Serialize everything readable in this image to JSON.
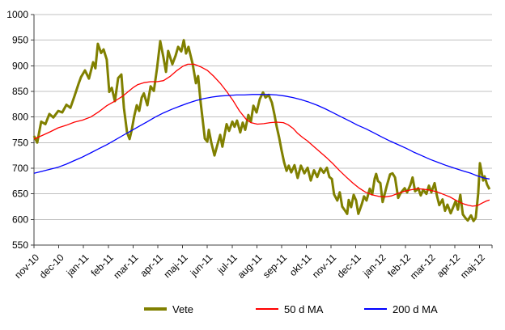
{
  "chart_data": {
    "type": "line",
    "title": "",
    "xlabel": "",
    "ylabel": "",
    "grid": true,
    "x_axis": {
      "unit": "months (fractional index from nov-10 tick)",
      "extent": 18.5,
      "labels": [
        "nov-10",
        "dec-10",
        "jan-11",
        "feb-11",
        "mar-11",
        "apr-11",
        "maj-11",
        "jun-11",
        "jul-11",
        "aug-11",
        "sep-11",
        "okt-11",
        "nov-11",
        "dec-11",
        "jan-12",
        "feb-12",
        "mar-12",
        "apr-12",
        "maj-12"
      ],
      "label_rotation_deg": -45
    },
    "y_axis": {
      "min": 550,
      "max": 1000,
      "step": 50,
      "ticks": [
        550,
        600,
        650,
        700,
        750,
        800,
        850,
        900,
        950,
        1000
      ]
    },
    "legend": {
      "position": "bottom"
    },
    "series": [
      {
        "name": "Vete",
        "color": "#808000",
        "stroke_width": 3,
        "points": [
          [
            0,
            763
          ],
          [
            0.13,
            750
          ],
          [
            0.29,
            791
          ],
          [
            0.46,
            786
          ],
          [
            0.62,
            806
          ],
          [
            0.78,
            799
          ],
          [
            0.98,
            812
          ],
          [
            1.14,
            809
          ],
          [
            1.31,
            824
          ],
          [
            1.47,
            818
          ],
          [
            1.63,
            840
          ],
          [
            1.8,
            865
          ],
          [
            1.9,
            878
          ],
          [
            2.06,
            891
          ],
          [
            2.22,
            875
          ],
          [
            2.39,
            907
          ],
          [
            2.48,
            895
          ],
          [
            2.58,
            943
          ],
          [
            2.71,
            925
          ],
          [
            2.81,
            932
          ],
          [
            2.94,
            912
          ],
          [
            3.04,
            849
          ],
          [
            3.14,
            857
          ],
          [
            3.27,
            831
          ],
          [
            3.4,
            876
          ],
          [
            3.53,
            883
          ],
          [
            3.63,
            818
          ],
          [
            3.76,
            770
          ],
          [
            3.86,
            757
          ],
          [
            3.95,
            775
          ],
          [
            4.05,
            802
          ],
          [
            4.15,
            823
          ],
          [
            4.25,
            812
          ],
          [
            4.35,
            838
          ],
          [
            4.44,
            846
          ],
          [
            4.58,
            823
          ],
          [
            4.71,
            860
          ],
          [
            4.84,
            851
          ],
          [
            4.97,
            896
          ],
          [
            5.1,
            948
          ],
          [
            5.23,
            916
          ],
          [
            5.33,
            888
          ],
          [
            5.42,
            929
          ],
          [
            5.59,
            903
          ],
          [
            5.72,
            920
          ],
          [
            5.82,
            937
          ],
          [
            5.95,
            928
          ],
          [
            6.05,
            950
          ],
          [
            6.14,
            924
          ],
          [
            6.24,
            937
          ],
          [
            6.41,
            903
          ],
          [
            6.54,
            866
          ],
          [
            6.63,
            880
          ],
          [
            6.73,
            829
          ],
          [
            6.83,
            787
          ],
          [
            6.9,
            758
          ],
          [
            7,
            752
          ],
          [
            7.06,
            775
          ],
          [
            7.16,
            750
          ],
          [
            7.29,
            725
          ],
          [
            7.42,
            748
          ],
          [
            7.52,
            765
          ],
          [
            7.61,
            742
          ],
          [
            7.78,
            786
          ],
          [
            7.88,
            773
          ],
          [
            8.01,
            791
          ],
          [
            8.1,
            781
          ],
          [
            8.2,
            793
          ],
          [
            8.33,
            770
          ],
          [
            8.43,
            789
          ],
          [
            8.53,
            775
          ],
          [
            8.66,
            804
          ],
          [
            8.76,
            791
          ],
          [
            8.86,
            822
          ],
          [
            8.99,
            809
          ],
          [
            9.12,
            835
          ],
          [
            9.25,
            848
          ],
          [
            9.35,
            838
          ],
          [
            9.48,
            843
          ],
          [
            9.61,
            828
          ],
          [
            9.71,
            805
          ],
          [
            9.8,
            782
          ],
          [
            9.9,
            760
          ],
          [
            10,
            735
          ],
          [
            10.1,
            712
          ],
          [
            10.2,
            695
          ],
          [
            10.29,
            705
          ],
          [
            10.39,
            692
          ],
          [
            10.52,
            706
          ],
          [
            10.65,
            681
          ],
          [
            10.78,
            705
          ],
          [
            10.92,
            690
          ],
          [
            11.05,
            701
          ],
          [
            11.18,
            676
          ],
          [
            11.31,
            696
          ],
          [
            11.44,
            683
          ],
          [
            11.57,
            700
          ],
          [
            11.7,
            691
          ],
          [
            11.83,
            701
          ],
          [
            11.93,
            683
          ],
          [
            12.03,
            679
          ],
          [
            12.12,
            649
          ],
          [
            12.25,
            637
          ],
          [
            12.35,
            653
          ],
          [
            12.45,
            625
          ],
          [
            12.58,
            616
          ],
          [
            12.65,
            611
          ],
          [
            12.71,
            638
          ],
          [
            12.81,
            624
          ],
          [
            12.91,
            648
          ],
          [
            13.01,
            637
          ],
          [
            13.1,
            611
          ],
          [
            13.24,
            630
          ],
          [
            13.33,
            645
          ],
          [
            13.43,
            637
          ],
          [
            13.56,
            660
          ],
          [
            13.66,
            649
          ],
          [
            13.76,
            680
          ],
          [
            13.82,
            689
          ],
          [
            13.89,
            675
          ],
          [
            13.99,
            671
          ],
          [
            14.08,
            634
          ],
          [
            14.25,
            666
          ],
          [
            14.38,
            688
          ],
          [
            14.48,
            690
          ],
          [
            14.58,
            682
          ],
          [
            14.71,
            642
          ],
          [
            14.8,
            651
          ],
          [
            14.97,
            661
          ],
          [
            15.07,
            653
          ],
          [
            15.2,
            667
          ],
          [
            15.29,
            682
          ],
          [
            15.39,
            655
          ],
          [
            15.52,
            661
          ],
          [
            15.62,
            647
          ],
          [
            15.72,
            658
          ],
          [
            15.85,
            650
          ],
          [
            15.95,
            666
          ],
          [
            16.05,
            653
          ],
          [
            16.18,
            671
          ],
          [
            16.27,
            647
          ],
          [
            16.37,
            628
          ],
          [
            16.5,
            639
          ],
          [
            16.6,
            617
          ],
          [
            16.7,
            629
          ],
          [
            16.83,
            612
          ],
          [
            16.93,
            624
          ],
          [
            17.03,
            636
          ],
          [
            17.12,
            619
          ],
          [
            17.22,
            648
          ],
          [
            17.32,
            610
          ],
          [
            17.42,
            603
          ],
          [
            17.52,
            598
          ],
          [
            17.65,
            608
          ],
          [
            17.75,
            597
          ],
          [
            17.84,
            603
          ],
          [
            17.94,
            651
          ],
          [
            18.01,
            710
          ],
          [
            18.07,
            695
          ],
          [
            18.14,
            676
          ],
          [
            18.2,
            684
          ],
          [
            18.3,
            668
          ],
          [
            18.4,
            659
          ]
        ]
      },
      {
        "name": "50 d MA",
        "color": "#ff0000",
        "stroke_width": 1.3,
        "points": [
          [
            0,
            757
          ],
          [
            0.33,
            764
          ],
          [
            0.65,
            771
          ],
          [
            0.98,
            779
          ],
          [
            1.31,
            784
          ],
          [
            1.63,
            790
          ],
          [
            1.96,
            794
          ],
          [
            2.29,
            800
          ],
          [
            2.61,
            810
          ],
          [
            2.94,
            822
          ],
          [
            3.27,
            831
          ],
          [
            3.59,
            841
          ],
          [
            3.79,
            849
          ],
          [
            3.99,
            857
          ],
          [
            4.18,
            863
          ],
          [
            4.44,
            867
          ],
          [
            4.71,
            869
          ],
          [
            4.97,
            869
          ],
          [
            5.23,
            871
          ],
          [
            5.49,
            879
          ],
          [
            5.75,
            890
          ],
          [
            6.01,
            899
          ],
          [
            6.21,
            903
          ],
          [
            6.47,
            903
          ],
          [
            6.73,
            898
          ],
          [
            7,
            891
          ],
          [
            7.25,
            880
          ],
          [
            7.52,
            866
          ],
          [
            7.78,
            850
          ],
          [
            8.04,
            832
          ],
          [
            8.3,
            812
          ],
          [
            8.56,
            796
          ],
          [
            8.76,
            789
          ],
          [
            9.02,
            786
          ],
          [
            9.28,
            787
          ],
          [
            9.54,
            789
          ],
          [
            9.8,
            790
          ],
          [
            10.07,
            789
          ],
          [
            10.26,
            785
          ],
          [
            10.46,
            778
          ],
          [
            10.65,
            768
          ],
          [
            10.85,
            760
          ],
          [
            11.05,
            753
          ],
          [
            11.31,
            742
          ],
          [
            11.57,
            731
          ],
          [
            11.83,
            720
          ],
          [
            12.09,
            708
          ],
          [
            12.35,
            695
          ],
          [
            12.61,
            683
          ],
          [
            12.88,
            671
          ],
          [
            13.14,
            661
          ],
          [
            13.4,
            653
          ],
          [
            13.66,
            648
          ],
          [
            13.92,
            645
          ],
          [
            14.18,
            644
          ],
          [
            14.44,
            646
          ],
          [
            14.71,
            651
          ],
          [
            14.97,
            655
          ],
          [
            15.23,
            658
          ],
          [
            15.49,
            660
          ],
          [
            15.75,
            659
          ],
          [
            16.01,
            657
          ],
          [
            16.27,
            654
          ],
          [
            16.54,
            649
          ],
          [
            16.8,
            644
          ],
          [
            17.06,
            637
          ],
          [
            17.32,
            631
          ],
          [
            17.52,
            628
          ],
          [
            17.71,
            626
          ],
          [
            17.91,
            627
          ],
          [
            18.1,
            632
          ],
          [
            18.27,
            636
          ],
          [
            18.4,
            638
          ]
        ]
      },
      {
        "name": "200 d MA",
        "color": "#0000ff",
        "stroke_width": 1.3,
        "points": [
          [
            0,
            690
          ],
          [
            0.33,
            694
          ],
          [
            0.65,
            698
          ],
          [
            0.98,
            702
          ],
          [
            1.31,
            708
          ],
          [
            1.63,
            715
          ],
          [
            1.96,
            722
          ],
          [
            2.29,
            730
          ],
          [
            2.61,
            738
          ],
          [
            2.94,
            746
          ],
          [
            3.27,
            755
          ],
          [
            3.59,
            764
          ],
          [
            3.92,
            773
          ],
          [
            4.25,
            782
          ],
          [
            4.58,
            791
          ],
          [
            4.9,
            800
          ],
          [
            5.23,
            808
          ],
          [
            5.56,
            815
          ],
          [
            5.88,
            821
          ],
          [
            6.21,
            827
          ],
          [
            6.54,
            832
          ],
          [
            6.86,
            836
          ],
          [
            7.19,
            839
          ],
          [
            7.52,
            841
          ],
          [
            7.84,
            842
          ],
          [
            8.17,
            843
          ],
          [
            8.5,
            843
          ],
          [
            8.82,
            844
          ],
          [
            9.15,
            844
          ],
          [
            9.48,
            844
          ],
          [
            9.8,
            843
          ],
          [
            10.13,
            841
          ],
          [
            10.46,
            838
          ],
          [
            10.78,
            834
          ],
          [
            11.11,
            829
          ],
          [
            11.44,
            823
          ],
          [
            11.76,
            816
          ],
          [
            12.09,
            808
          ],
          [
            12.42,
            800
          ],
          [
            12.75,
            792
          ],
          [
            13.07,
            784
          ],
          [
            13.4,
            777
          ],
          [
            13.73,
            769
          ],
          [
            14.05,
            761
          ],
          [
            14.38,
            753
          ],
          [
            14.71,
            746
          ],
          [
            15.03,
            739
          ],
          [
            15.36,
            731
          ],
          [
            15.69,
            724
          ],
          [
            16.01,
            717
          ],
          [
            16.34,
            711
          ],
          [
            16.67,
            705
          ],
          [
            16.99,
            700
          ],
          [
            17.32,
            695
          ],
          [
            17.65,
            690
          ],
          [
            17.91,
            685
          ],
          [
            18.17,
            681
          ],
          [
            18.4,
            679
          ]
        ]
      }
    ],
    "colors": {
      "grid": "#c0c0c0",
      "axis": "#404040",
      "text": "#000000",
      "background": "#ffffff"
    }
  }
}
